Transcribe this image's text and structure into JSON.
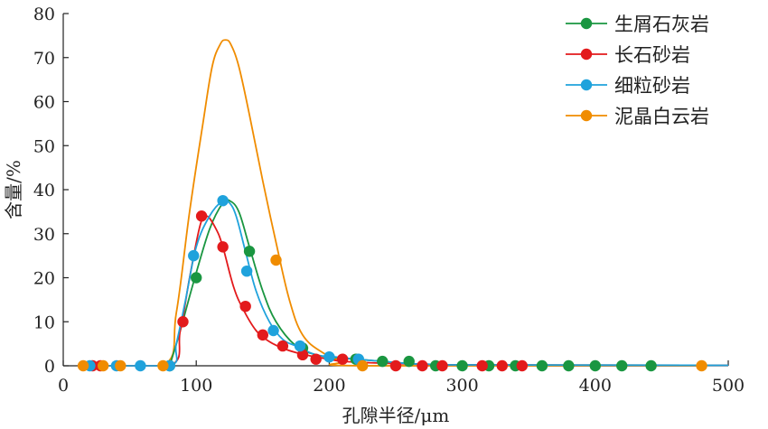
{
  "chart_data": {
    "type": "line",
    "xlabel": "孔隙半径/μm",
    "ylabel": "含量/%",
    "xlim": [
      0,
      500
    ],
    "ylim": [
      0,
      80
    ],
    "x_ticks": [
      0,
      100,
      200,
      300,
      400,
      500
    ],
    "y_ticks": [
      0,
      10,
      20,
      30,
      40,
      50,
      60,
      70,
      80
    ],
    "grid": false,
    "legend_position": "top-right",
    "series": [
      {
        "name": "生屑石灰岩",
        "color": "#1a9641",
        "line": [
          [
            80,
            0
          ],
          [
            88,
            8
          ],
          [
            98,
            19
          ],
          [
            110,
            31
          ],
          [
            120,
            37
          ],
          [
            125,
            37.5
          ],
          [
            132,
            35
          ],
          [
            140,
            27
          ],
          [
            150,
            17
          ],
          [
            160,
            10
          ],
          [
            175,
            4.5
          ],
          [
            190,
            2.5
          ],
          [
            200,
            2
          ],
          [
            220,
            1.5
          ],
          [
            240,
            1
          ],
          [
            260,
            0.5
          ],
          [
            280,
            0.3
          ],
          [
            300,
            0.2
          ],
          [
            500,
            0.1
          ]
        ],
        "points": [
          [
            80,
            0
          ],
          [
            100,
            20
          ],
          [
            140,
            26
          ],
          [
            180,
            4
          ],
          [
            220,
            1.5
          ],
          [
            240,
            1
          ],
          [
            260,
            1
          ],
          [
            280,
            0
          ],
          [
            300,
            0
          ],
          [
            320,
            0
          ],
          [
            340,
            0
          ],
          [
            360,
            0
          ],
          [
            380,
            0
          ],
          [
            400,
            0
          ],
          [
            420,
            0
          ],
          [
            442,
            0
          ]
        ]
      },
      {
        "name": "长石砂岩",
        "color": "#e31a1c",
        "line": [
          [
            22,
            0
          ],
          [
            80,
            0
          ],
          [
            88,
            8
          ],
          [
            95,
            20
          ],
          [
            103,
            32
          ],
          [
            108,
            34
          ],
          [
            115,
            31
          ],
          [
            120,
            27
          ],
          [
            128,
            18
          ],
          [
            135,
            13
          ],
          [
            145,
            8
          ],
          [
            155,
            5.5
          ],
          [
            165,
            4
          ],
          [
            175,
            3
          ],
          [
            190,
            2
          ],
          [
            200,
            1.5
          ],
          [
            210,
            1
          ],
          [
            230,
            0.7
          ],
          [
            250,
            0.5
          ],
          [
            280,
            0.3
          ],
          [
            300,
            0.2
          ],
          [
            500,
            0.1
          ]
        ],
        "points": [
          [
            22,
            0
          ],
          [
            28,
            0
          ],
          [
            90,
            10
          ],
          [
            104,
            34
          ],
          [
            120,
            27
          ],
          [
            137,
            13.5
          ],
          [
            150,
            7
          ],
          [
            165,
            4.5
          ],
          [
            180,
            2.5
          ],
          [
            190,
            1.5
          ],
          [
            210,
            1.5
          ],
          [
            250,
            0
          ],
          [
            270,
            0
          ],
          [
            285,
            0
          ],
          [
            315,
            0
          ],
          [
            330,
            0
          ],
          [
            345,
            0
          ]
        ]
      },
      {
        "name": "细粒砂岩",
        "color": "#1fa2dc",
        "line": [
          [
            30,
            0
          ],
          [
            80,
            0
          ],
          [
            85,
            5
          ],
          [
            92,
            15
          ],
          [
            100,
            27
          ],
          [
            110,
            34
          ],
          [
            120,
            37.5
          ],
          [
            125,
            37
          ],
          [
            130,
            34
          ],
          [
            137,
            26
          ],
          [
            145,
            17
          ],
          [
            155,
            10
          ],
          [
            165,
            6
          ],
          [
            175,
            4.5
          ],
          [
            190,
            2.5
          ],
          [
            205,
            2
          ],
          [
            220,
            1.5
          ],
          [
            240,
            1
          ],
          [
            260,
            0.5
          ],
          [
            280,
            0.3
          ],
          [
            300,
            0.2
          ],
          [
            500,
            0.1
          ]
        ],
        "points": [
          [
            20,
            0
          ],
          [
            40,
            0
          ],
          [
            58,
            0
          ],
          [
            80,
            0
          ],
          [
            98,
            25
          ],
          [
            120,
            37.5
          ],
          [
            138,
            21.5
          ],
          [
            158,
            8
          ],
          [
            178,
            4.5
          ],
          [
            200,
            2
          ],
          [
            222,
            1.5
          ]
        ]
      },
      {
        "name": "泥晶白云岩",
        "color": "#f08c00",
        "line": [
          [
            15,
            0
          ],
          [
            75,
            0
          ],
          [
            85,
            12
          ],
          [
            95,
            35
          ],
          [
            105,
            55
          ],
          [
            112,
            68
          ],
          [
            118,
            73
          ],
          [
            122,
            74
          ],
          [
            126,
            73
          ],
          [
            132,
            68
          ],
          [
            140,
            57
          ],
          [
            150,
            42
          ],
          [
            160,
            28
          ],
          [
            170,
            15
          ],
          [
            180,
            7
          ],
          [
            195,
            3
          ],
          [
            210,
            1
          ],
          [
            225,
            0
          ],
          [
            480,
            0
          ]
        ],
        "points": [
          [
            15,
            0
          ],
          [
            30,
            0
          ],
          [
            43,
            0
          ],
          [
            75,
            0
          ],
          [
            160,
            24
          ],
          [
            225,
            0
          ],
          [
            480,
            0
          ]
        ]
      }
    ]
  }
}
